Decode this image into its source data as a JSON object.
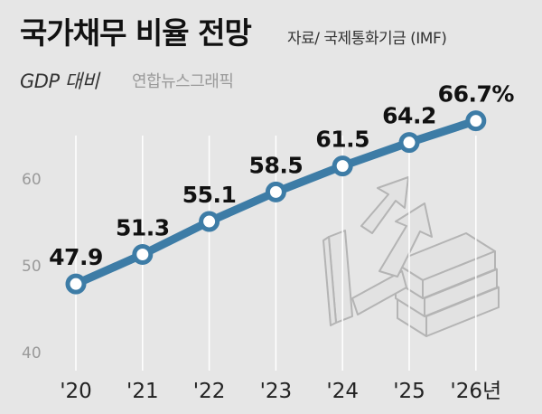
{
  "header": {
    "title": "국가채무 비율 전망",
    "source": "자료/ 국제통화기금 (IMF)",
    "subtitle": "GDP 대비",
    "credit": "연합뉴스그래픽"
  },
  "chart_data": {
    "type": "line",
    "title": "국가채무 비율 전망",
    "ylabel": "GDP 대비",
    "categories": [
      "'20",
      "'21",
      "'22",
      "'23",
      "'24",
      "'25",
      "'26년"
    ],
    "values": [
      47.9,
      51.3,
      55.1,
      58.5,
      61.5,
      64.2,
      66.7
    ],
    "value_labels": [
      "47.9",
      "51.3",
      "55.1",
      "58.5",
      "61.5",
      "64.2",
      "66.7%"
    ],
    "y_ticks": [
      40,
      50,
      60
    ],
    "ylim": [
      40,
      70
    ],
    "grid": "vertical",
    "line_color": "#3d7ca6",
    "marker_fill": "#ffffff"
  }
}
